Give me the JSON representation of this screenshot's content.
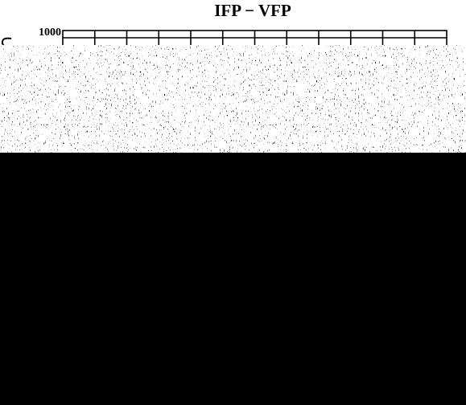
{
  "header": {
    "title": "IFP − VFP"
  },
  "axis": {
    "tick_label": 1000
  }
}
